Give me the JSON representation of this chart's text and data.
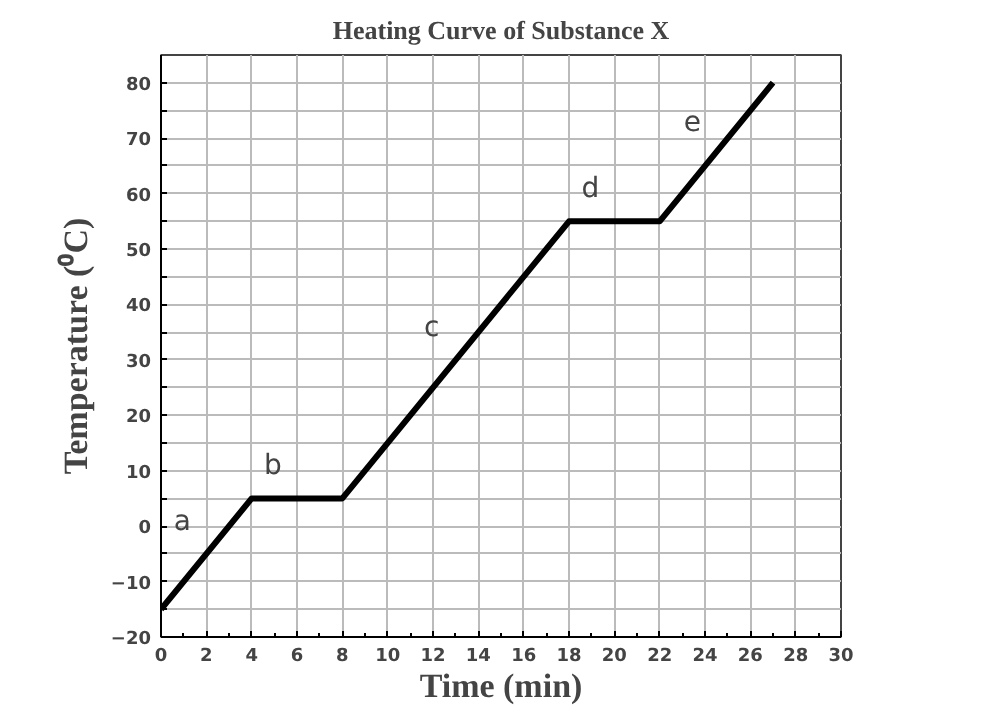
{
  "chart_data": {
    "type": "line",
    "title": "Heating Curve of Substance X",
    "xlabel": "Time (min)",
    "ylabel": "Temperature (⁰C)",
    "x": [
      0,
      4,
      8,
      18,
      22,
      27
    ],
    "series": [
      {
        "color": "#000000",
        "values": [
          -15,
          5,
          5,
          55,
          55,
          80
        ]
      }
    ],
    "xlim": [
      0,
      30
    ],
    "ylim": [
      -20,
      85
    ],
    "xticks": [
      0,
      2,
      4,
      6,
      8,
      10,
      12,
      14,
      16,
      18,
      20,
      22,
      24,
      26,
      28,
      30
    ],
    "yticks": [
      -20,
      {
        "value": -15,
        "label": null
      },
      -10,
      {
        "value": -5,
        "label": null
      },
      0,
      {
        "value": 5,
        "label": null
      },
      10,
      {
        "value": 15,
        "label": null
      },
      20,
      {
        "value": 25,
        "label": null
      },
      30,
      {
        "value": 35,
        "label": null
      },
      40,
      {
        "value": 45,
        "label": null
      },
      50,
      {
        "value": 55,
        "label": null
      },
      60,
      {
        "value": 65,
        "label": null
      },
      70,
      {
        "value": 75,
        "label": null
      },
      80
    ],
    "grid": true,
    "marker": "none",
    "line_style": "solid",
    "annotations": [
      "a",
      "b",
      "c",
      "d",
      "e"
    ]
  }
}
